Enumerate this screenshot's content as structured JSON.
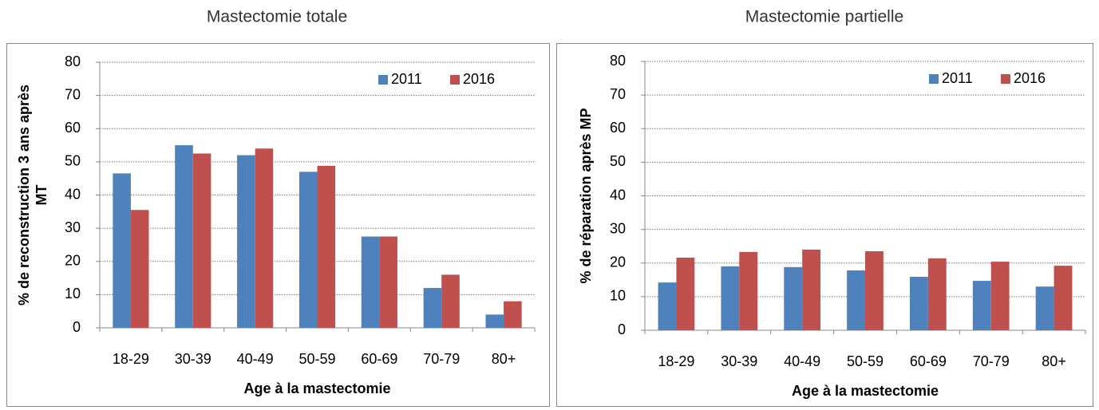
{
  "chart_data": [
    {
      "type": "bar",
      "title": "Mastectomie totale",
      "ylabel": [
        "% de reconstruction 3 ans après",
        "MT"
      ],
      "xlabel": "Age à la mastectomie",
      "categories": [
        "18-29",
        "30-39",
        "40-49",
        "50-59",
        "60-69",
        "70-79",
        "80+"
      ],
      "series": [
        {
          "name": "2011",
          "color": "#4f81bd",
          "values": [
            46.5,
            55,
            52,
            47,
            27.5,
            12,
            4
          ]
        },
        {
          "name": "2016",
          "color": "#c0504d",
          "values": [
            35.5,
            52.5,
            54,
            48.8,
            27.5,
            16,
            8
          ]
        }
      ],
      "ylim": [
        0,
        80
      ],
      "yticks": [
        0,
        10,
        20,
        30,
        40,
        50,
        60,
        70,
        80
      ],
      "grid": true,
      "legend": "upper right"
    },
    {
      "type": "bar",
      "title": "Mastectomie partielle",
      "ylabel": [
        "% de réparation après MP"
      ],
      "xlabel": "Age à la mastectomie",
      "categories": [
        "18-29",
        "30-39",
        "40-49",
        "50-59",
        "60-69",
        "70-79",
        "80+"
      ],
      "series": [
        {
          "name": "2011",
          "color": "#4f81bd",
          "values": [
            14.2,
            19,
            18.8,
            17.8,
            15.9,
            14.7,
            13
          ]
        },
        {
          "name": "2016",
          "color": "#c0504d",
          "values": [
            21.6,
            23.3,
            24,
            23.5,
            21.4,
            20.4,
            19.2
          ]
        }
      ],
      "ylim": [
        0,
        80
      ],
      "yticks": [
        0,
        10,
        20,
        30,
        40,
        50,
        60,
        70,
        80
      ],
      "grid": true,
      "legend": "upper right"
    }
  ]
}
